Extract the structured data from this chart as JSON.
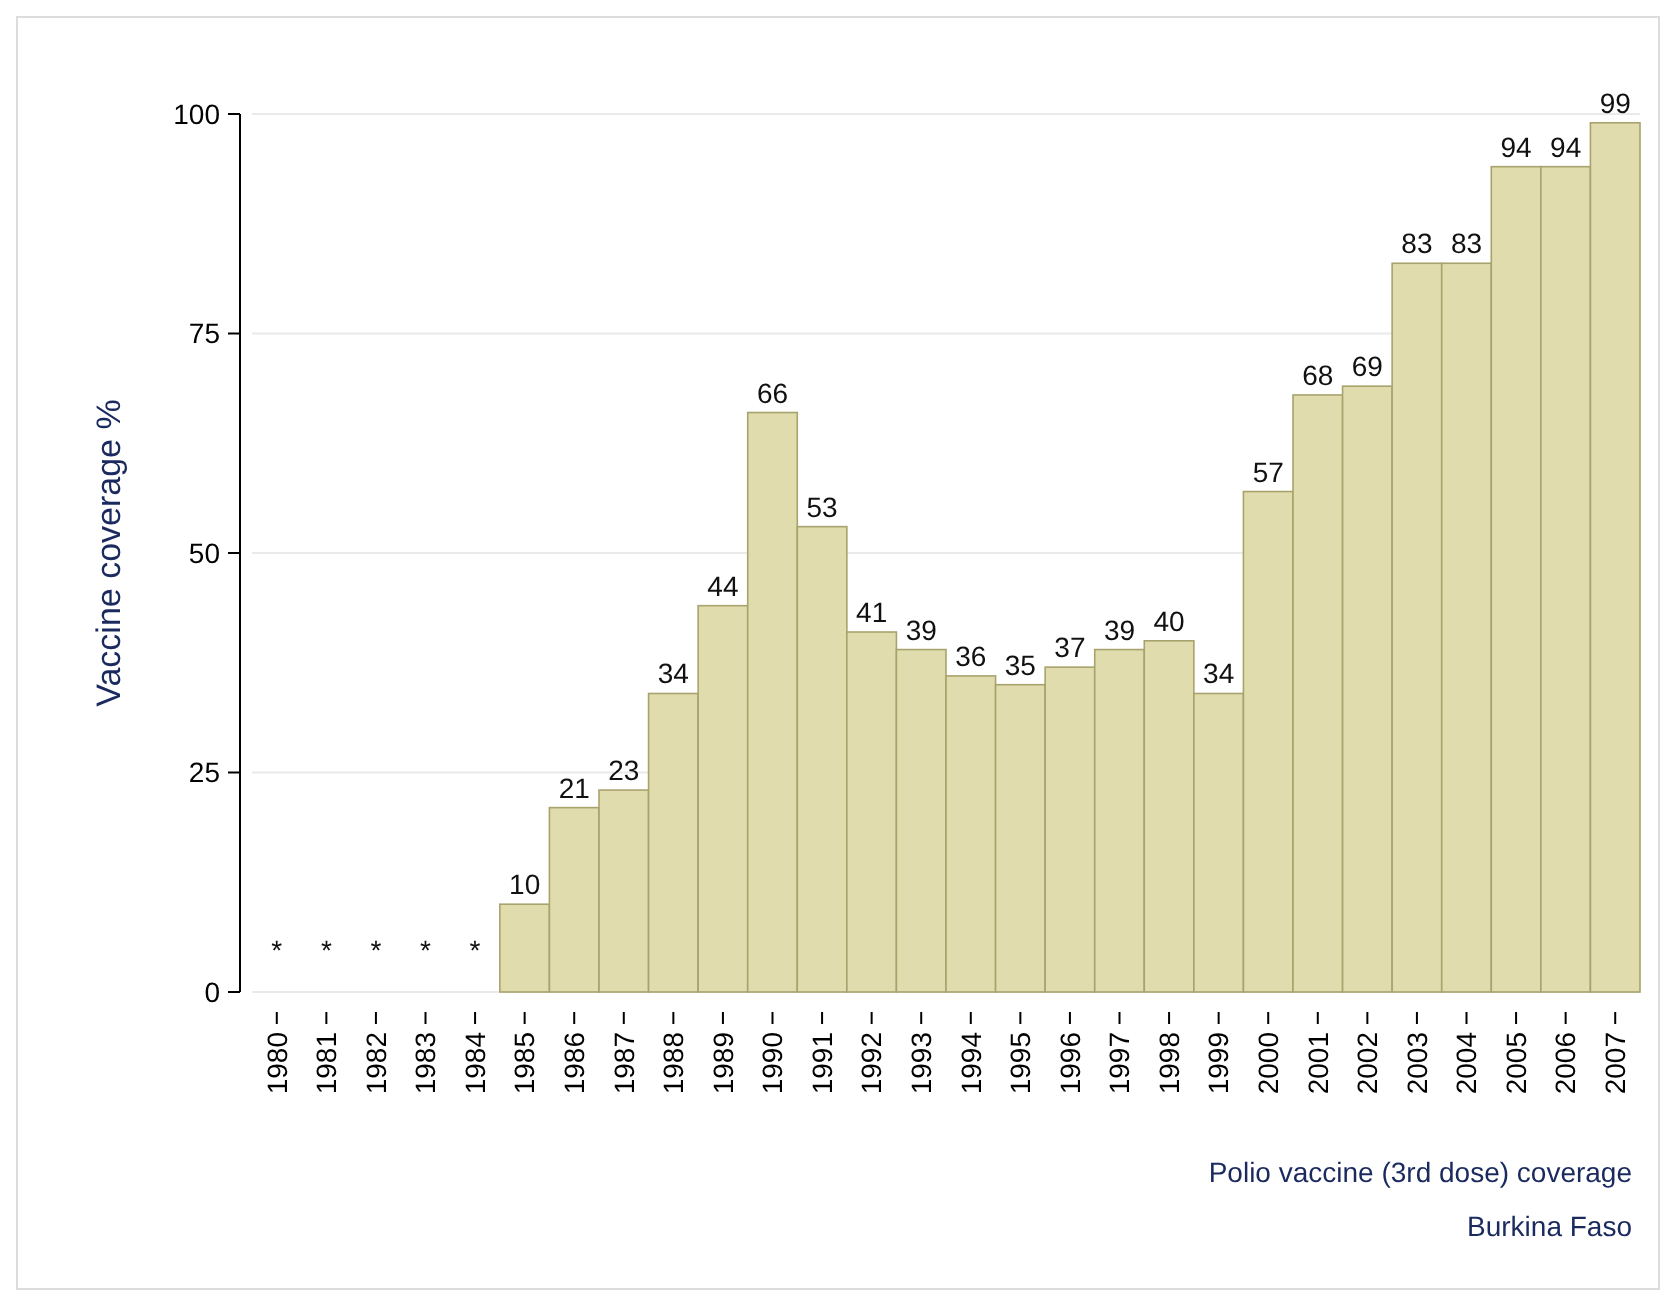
{
  "chart_data": {
    "type": "bar",
    "ylabel": "Vaccine coverage %",
    "categories": [
      "1980",
      "1981",
      "1982",
      "1983",
      "1984",
      "1985",
      "1986",
      "1987",
      "1988",
      "1989",
      "1990",
      "1991",
      "1992",
      "1993",
      "1994",
      "1995",
      "1996",
      "1997",
      "1998",
      "1999",
      "2000",
      "2001",
      "2002",
      "2003",
      "2004",
      "2005",
      "2006",
      "2007"
    ],
    "values": [
      null,
      null,
      null,
      null,
      null,
      10,
      21,
      23,
      34,
      44,
      66,
      53,
      41,
      39,
      36,
      35,
      37,
      39,
      40,
      34,
      57,
      68,
      69,
      83,
      83,
      94,
      94,
      99
    ],
    "value_labels": [
      "*",
      "*",
      "*",
      "*",
      "*",
      "10",
      "21",
      "23",
      "34",
      "44",
      "66",
      "53",
      "41",
      "39",
      "36",
      "35",
      "37",
      "39",
      "40",
      "34",
      "57",
      "68",
      "69",
      "83",
      "83",
      "94",
      "94",
      "99"
    ],
    "color": "#e0dcae",
    "ylim": [
      0,
      100
    ],
    "yticks": [
      0,
      25,
      50,
      75,
      100
    ],
    "grid": "y",
    "annotations": [
      "Polio vaccine (3rd dose) coverage",
      "Burkina Faso"
    ]
  }
}
